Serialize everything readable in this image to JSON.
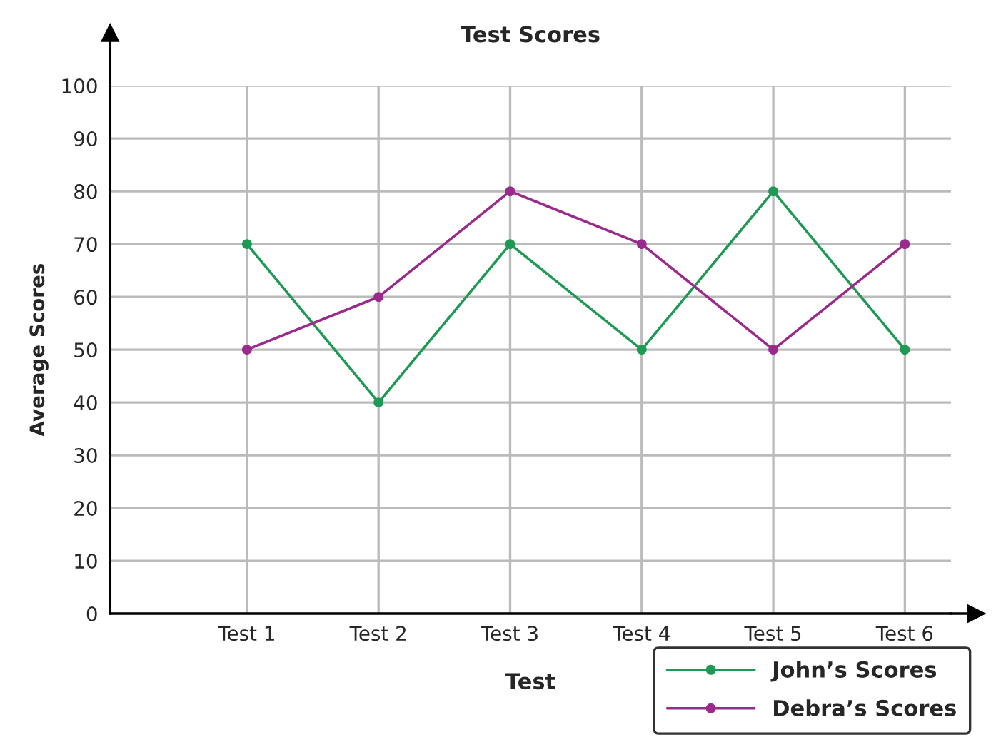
{
  "chart_data": {
    "type": "line",
    "title": "Test Scores",
    "xlabel": "Test",
    "ylabel": "Average Scores",
    "categories": [
      "Test 1",
      "Test 2",
      "Test 3",
      "Test 4",
      "Test 5",
      "Test 6"
    ],
    "series": [
      {
        "name": "John’s Scores",
        "color": "#1e9a55",
        "values": [
          70,
          40,
          70,
          50,
          80,
          50
        ]
      },
      {
        "name": "Debra’s Scores",
        "color": "#9a2a8c",
        "values": [
          50,
          60,
          80,
          70,
          50,
          70
        ]
      }
    ],
    "ylim": [
      0,
      100
    ],
    "yticks": [
      0,
      10,
      20,
      30,
      40,
      50,
      60,
      70,
      80,
      90,
      100
    ],
    "grid": true,
    "legend": "bottom right",
    "marker": "circle",
    "line_style": "solid"
  }
}
